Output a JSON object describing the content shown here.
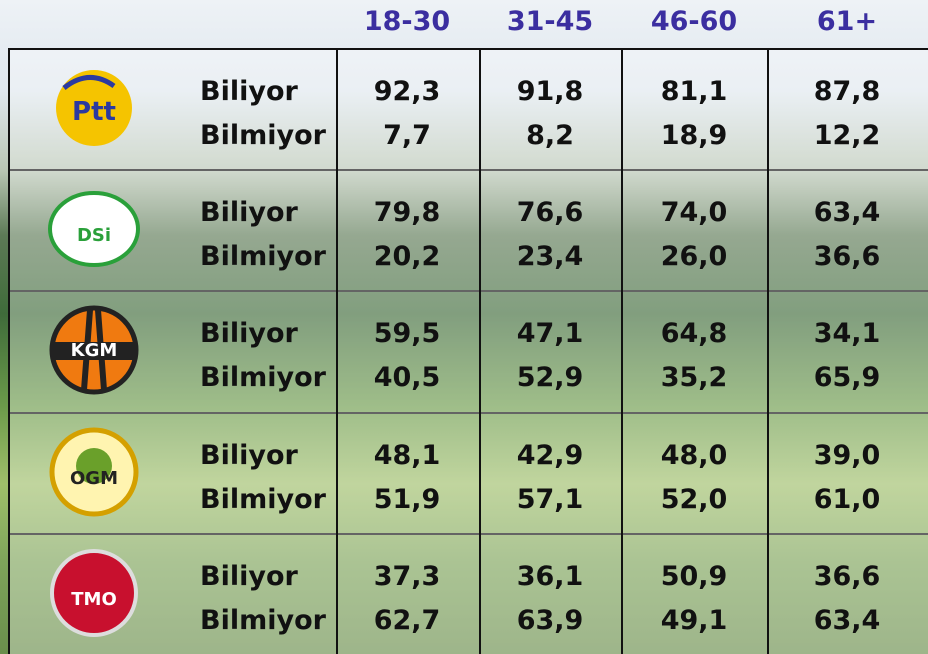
{
  "header": {
    "columns": [
      "18-30",
      "31-45",
      "46-60",
      "61+"
    ]
  },
  "table": {
    "rows": [
      {
        "logo": "Ptt",
        "lines": [
          {
            "label": "Biliyor",
            "values": [
              "92,3",
              "91,8",
              "81,1",
              "87,8"
            ]
          },
          {
            "label": "Bilmiyor",
            "values": [
              "7,7",
              "8,2",
              "18,9",
              "12,2"
            ]
          }
        ]
      },
      {
        "logo": "DSi",
        "lines": [
          {
            "label": "Biliyor",
            "values": [
              "79,8",
              "76,6",
              "74,0",
              "63,4"
            ]
          },
          {
            "label": "Bilmiyor",
            "values": [
              "20,2",
              "23,4",
              "26,0",
              "36,6"
            ]
          }
        ]
      },
      {
        "logo": "KGM",
        "lines": [
          {
            "label": "Biliyor",
            "values": [
              "59,5",
              "47,1",
              "64,8",
              "34,1"
            ]
          },
          {
            "label": "Bilmiyor",
            "values": [
              "40,5",
              "52,9",
              "35,2",
              "65,9"
            ]
          }
        ]
      },
      {
        "logo": "OGM",
        "lines": [
          {
            "label": "Biliyor",
            "values": [
              "48,1",
              "42,9",
              "48,0",
              "39,0"
            ]
          },
          {
            "label": "Bilmiyor",
            "values": [
              "51,9",
              "57,1",
              "52,0",
              "61,0"
            ]
          }
        ]
      },
      {
        "logo": "TMO",
        "lines": [
          {
            "label": "Biliyor",
            "values": [
              "37,3",
              "36,1",
              "50,9",
              "36,6"
            ]
          },
          {
            "label": "Bilmiyor",
            "values": [
              "62,7",
              "63,9",
              "49,1",
              "63,4"
            ]
          }
        ]
      }
    ]
  }
}
